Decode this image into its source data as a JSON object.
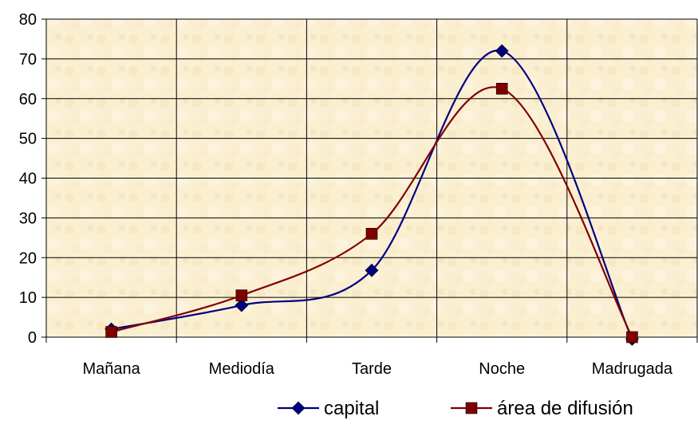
{
  "chart_data": {
    "type": "line",
    "categories": [
      "Mañana",
      "Mediodía",
      "Tarde",
      "Noche",
      "Madrugada"
    ],
    "series": [
      {
        "name": "capital",
        "values": [
          2,
          8,
          16.8,
          72,
          -0.5
        ],
        "color": "#000080",
        "marker": "diamond"
      },
      {
        "name": "área de difusión",
        "values": [
          1.3,
          10.5,
          26,
          62.5,
          0
        ],
        "color": "#800000",
        "marker": "square"
      }
    ],
    "ylim": [
      0,
      80
    ],
    "yticks": [
      0,
      10,
      20,
      30,
      40,
      50,
      60,
      70,
      80
    ],
    "grid": true,
    "smooth": true,
    "legend": "bottom",
    "plot_background": "#fbefd2",
    "title": "",
    "xlabel": "",
    "ylabel": ""
  }
}
